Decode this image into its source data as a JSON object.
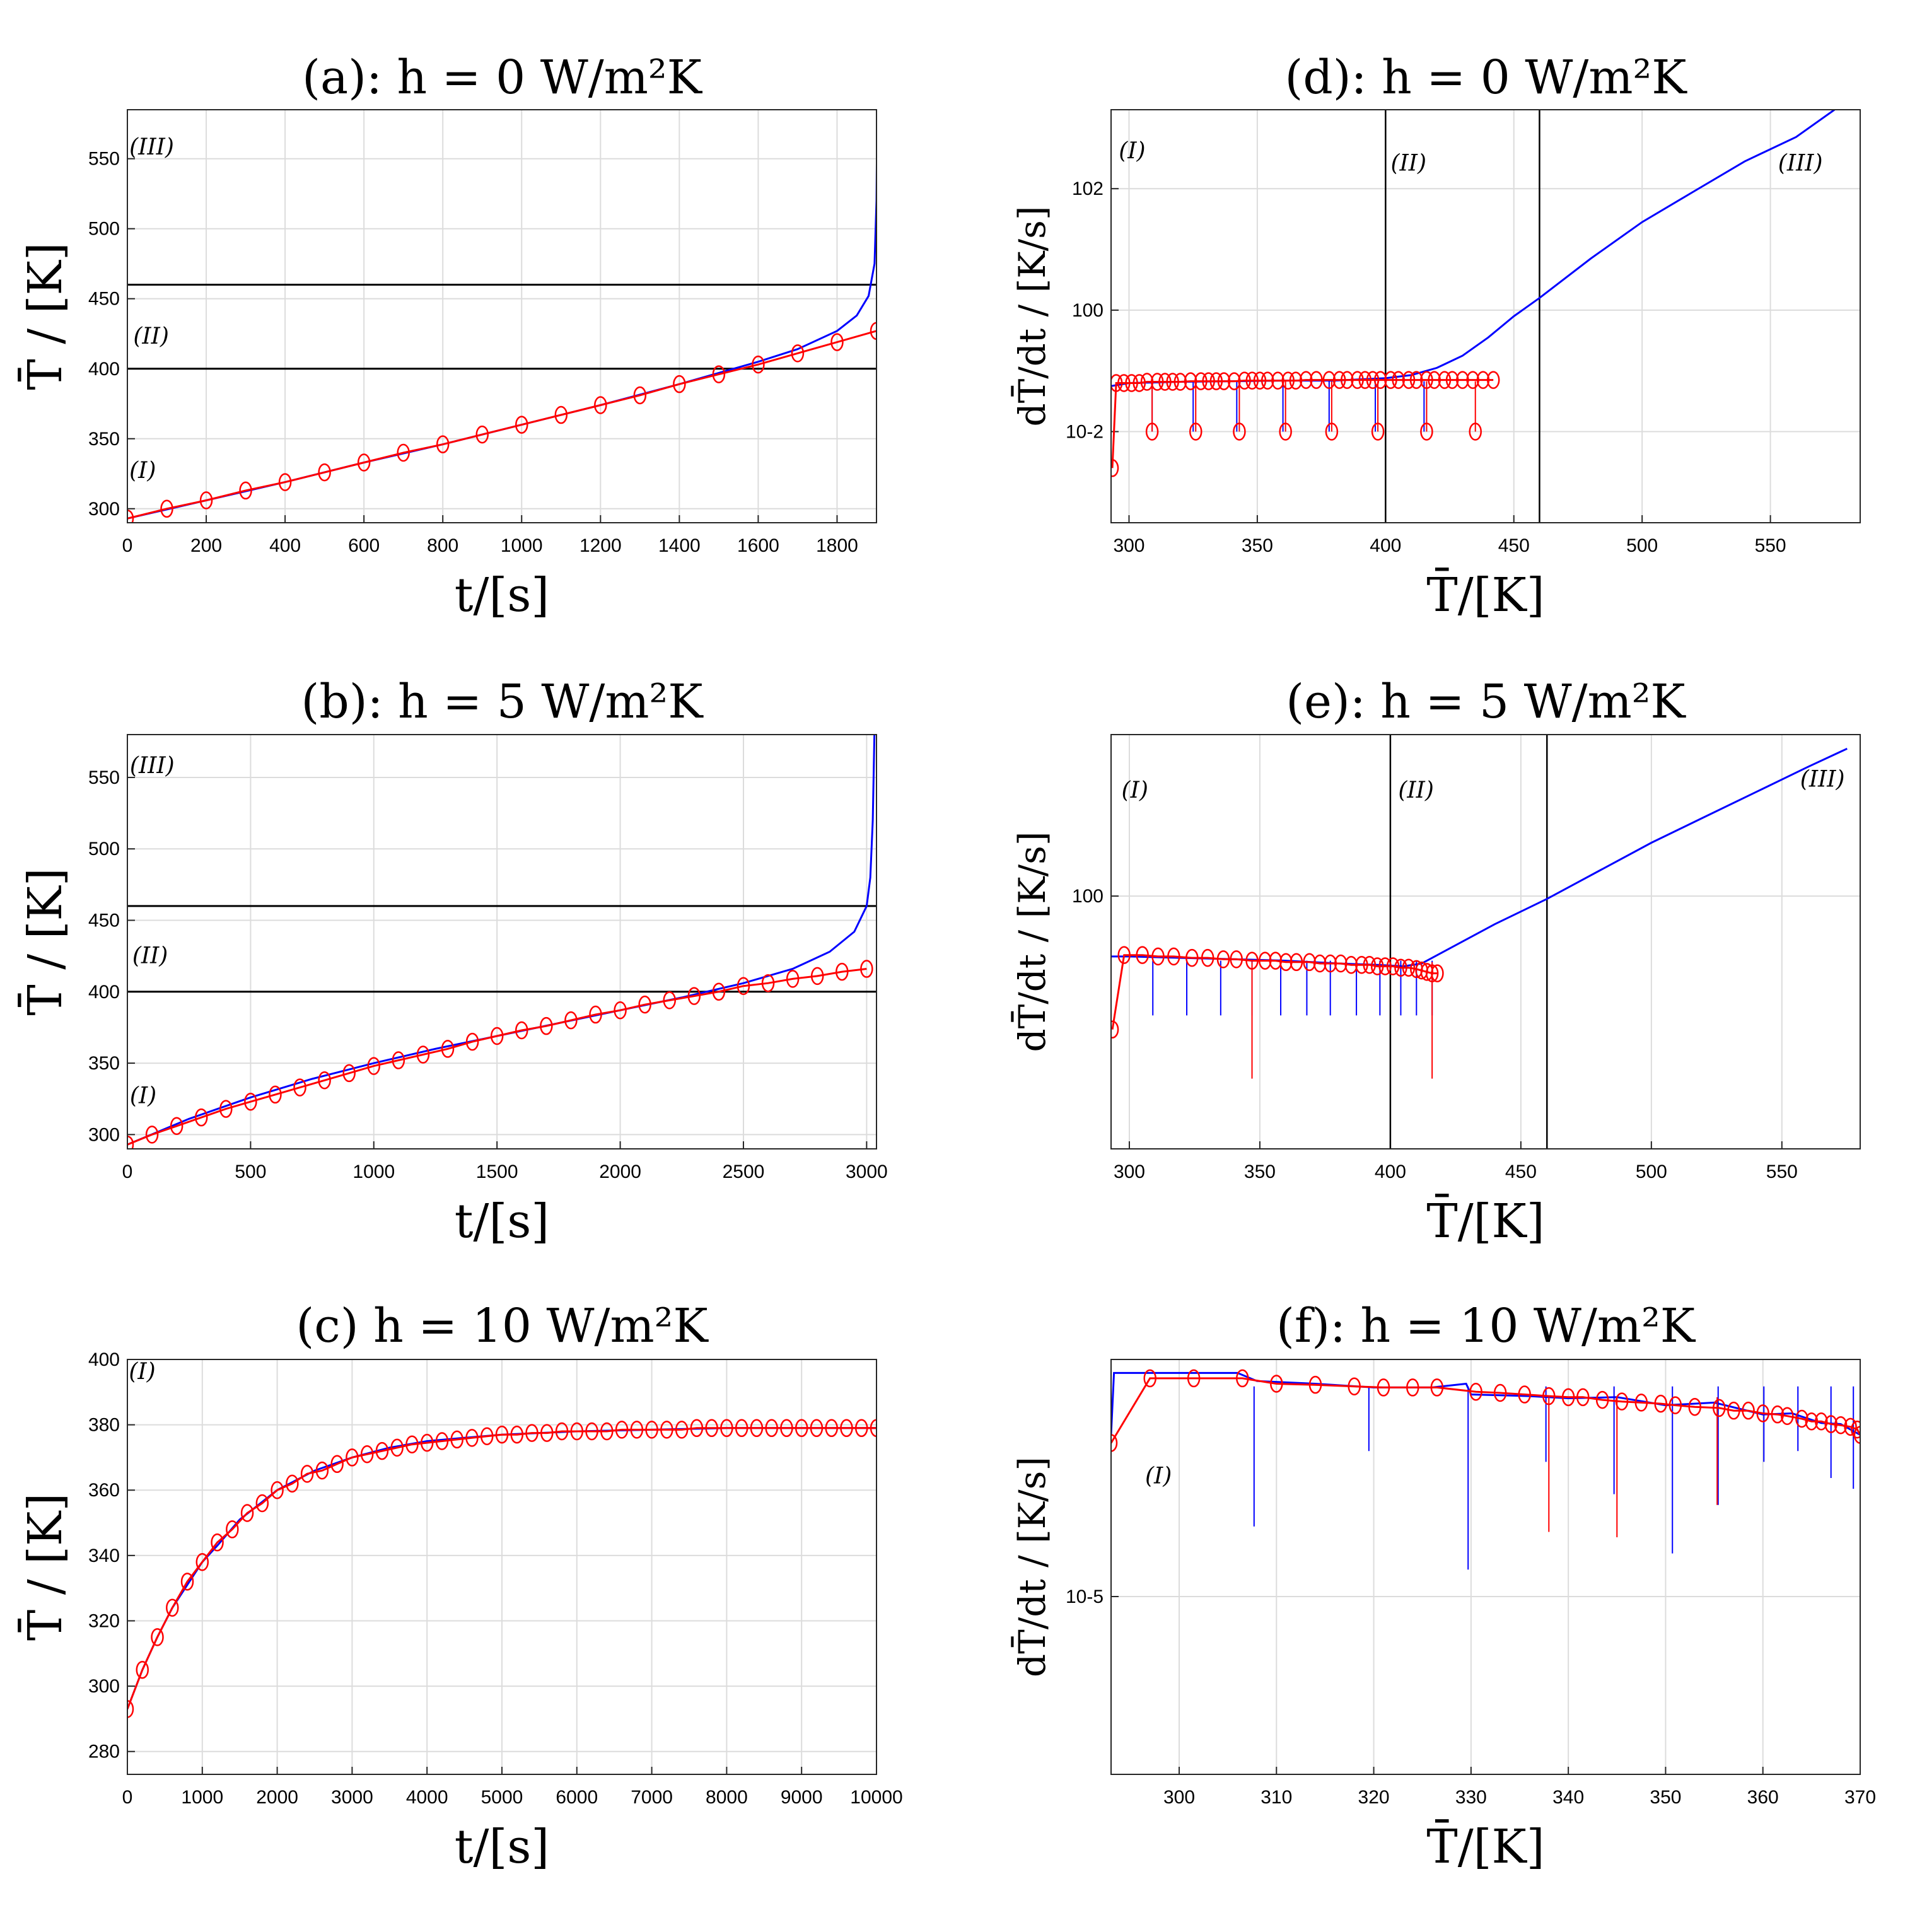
{
  "colors": {
    "model": "#0000ff",
    "reference": "#ff0000",
    "threshold": "#000000",
    "grid": "#dcdcdc"
  },
  "chart_data": [
    {
      "id": "a",
      "type": "line",
      "title": "(a): h = 0 W/m²K",
      "xlabel": "t/[s]",
      "ylabel": "T̄ / [K]",
      "xlim": [
        0,
        1900
      ],
      "ylim": [
        290,
        585
      ],
      "xticks": [
        0,
        200,
        400,
        600,
        800,
        1000,
        1200,
        1400,
        1600,
        1800
      ],
      "yticks": [
        300,
        350,
        400,
        450,
        500,
        550
      ],
      "hlines": [
        400,
        460
      ],
      "regions": [
        {
          "label": "(I)",
          "x": 5,
          "y": 322
        },
        {
          "label": "(II)",
          "x": 15,
          "y": 418
        },
        {
          "label": "(III)",
          "x": 5,
          "y": 553
        }
      ],
      "series": [
        {
          "role": "model",
          "x": [
            0,
            200,
            400,
            600,
            800,
            1000,
            1200,
            1400,
            1500,
            1600,
            1700,
            1800,
            1850,
            1880,
            1895,
            1900,
            1902
          ],
          "y": [
            293,
            306,
            319,
            333,
            346,
            360,
            374,
            389,
            397,
            405,
            414,
            427,
            438,
            452,
            475,
            520,
            590
          ]
        },
        {
          "role": "reference",
          "x": [
            0,
            100,
            200,
            300,
            400,
            500,
            600,
            700,
            800,
            900,
            1000,
            1100,
            1200,
            1300,
            1400,
            1500,
            1600,
            1700,
            1800,
            1900
          ],
          "y": [
            293,
            300,
            306,
            313,
            319,
            326,
            333,
            340,
            346,
            353,
            360,
            367,
            374,
            381,
            389,
            396,
            403,
            411,
            419,
            427
          ],
          "markers": true
        }
      ]
    },
    {
      "id": "d",
      "type": "line",
      "title": "(d): h = 0 W/m²K",
      "xlabel": "T̄/[K]",
      "ylabel": "dT̄/dt / [K/s]",
      "xlim": [
        293,
        585
      ],
      "ylim_log10": [
        -3.5,
        3.3
      ],
      "yscale": "log",
      "xticks": [
        300,
        350,
        400,
        450,
        500,
        550
      ],
      "yticks_log10": [
        -2,
        0,
        2
      ],
      "ytick_labels": [
        "10-2",
        "100",
        "102"
      ],
      "vlines": [
        400,
        460
      ],
      "regions": [
        {
          "label": "(I)",
          "x": 296,
          "y_log10": 2.5
        },
        {
          "label": "(II)",
          "x": 402,
          "y_log10": 2.3
        },
        {
          "label": "(III)",
          "x": 553,
          "y_log10": 2.3
        }
      ],
      "series": [
        {
          "role": "model",
          "x": [
            293,
            300,
            320,
            340,
            360,
            380,
            400,
            410,
            420,
            430,
            440,
            450,
            460,
            480,
            500,
            520,
            540,
            560,
            575
          ],
          "y_log10": [
            -1.25,
            -1.2,
            -1.18,
            -1.17,
            -1.16,
            -1.16,
            -1.12,
            -1.07,
            -0.95,
            -0.75,
            -0.45,
            -0.1,
            0.2,
            0.85,
            1.45,
            1.95,
            2.45,
            2.85,
            3.3
          ]
        },
        {
          "role": "model-dips",
          "x": [
            309,
            325,
            342,
            360,
            378,
            396,
            415
          ],
          "y_base_log10": -1.17,
          "y_tip_log10": -2.0
        },
        {
          "role": "reference",
          "x": [
            293.5,
            295,
            298,
            301,
            304,
            307,
            311,
            314,
            317,
            320,
            324,
            328,
            331,
            334,
            337,
            341,
            345,
            348,
            351,
            354,
            358,
            362,
            365,
            369,
            373,
            378,
            382,
            385,
            389,
            392,
            395,
            398,
            402,
            405,
            409,
            412,
            416,
            419,
            423,
            426,
            430,
            434,
            438,
            442
          ],
          "y_log10": [
            -2.6,
            -1.2,
            -1.2,
            -1.2,
            -1.2,
            -1.18,
            -1.18,
            -1.18,
            -1.18,
            -1.18,
            -1.17,
            -1.17,
            -1.17,
            -1.17,
            -1.17,
            -1.17,
            -1.16,
            -1.16,
            -1.16,
            -1.16,
            -1.16,
            -1.16,
            -1.16,
            -1.15,
            -1.15,
            -1.15,
            -1.15,
            -1.15,
            -1.15,
            -1.15,
            -1.15,
            -1.15,
            -1.15,
            -1.15,
            -1.15,
            -1.15,
            -1.15,
            -1.15,
            -1.15,
            -1.15,
            -1.15,
            -1.15,
            -1.15,
            -1.15
          ],
          "markers": true
        },
        {
          "role": "reference-dips",
          "x": [
            309,
            326,
            343,
            361,
            379,
            397,
            416,
            435
          ],
          "y_base_log10": -1.17,
          "y_tip_log10": -2.0,
          "markers_at_tip": true
        }
      ]
    },
    {
      "id": "b",
      "type": "line",
      "title": "(b): h = 5 W/m²K",
      "xlabel": "t/[s]",
      "ylabel": "T̄ / [K]",
      "xlim": [
        0,
        3040
      ],
      "ylim": [
        290,
        580
      ],
      "xticks": [
        0,
        500,
        1000,
        1500,
        2000,
        2500,
        3000
      ],
      "yticks": [
        300,
        350,
        400,
        450,
        500,
        550
      ],
      "hlines": [
        400,
        460
      ],
      "regions": [
        {
          "label": "(I)",
          "x": 10,
          "y": 322
        },
        {
          "label": "(II)",
          "x": 20,
          "y": 420
        },
        {
          "label": "(III)",
          "x": 10,
          "y": 553
        }
      ],
      "series": [
        {
          "role": "model",
          "x": [
            0,
            250,
            500,
            750,
            1000,
            1250,
            1500,
            1750,
            2000,
            2250,
            2500,
            2700,
            2850,
            2950,
            3000,
            3015,
            3025,
            3032
          ],
          "y": [
            293,
            311,
            326,
            339,
            350,
            360,
            369,
            378,
            387,
            396,
            406,
            416,
            428,
            442,
            460,
            480,
            520,
            585
          ]
        },
        {
          "role": "reference",
          "x": [
            0,
            100,
            200,
            300,
            400,
            500,
            600,
            700,
            800,
            900,
            1000,
            1100,
            1200,
            1300,
            1400,
            1500,
            1600,
            1700,
            1800,
            1900,
            2000,
            2100,
            2200,
            2300,
            2400,
            2500,
            2600,
            2700,
            2800,
            2900,
            3000
          ],
          "y": [
            293,
            300,
            306,
            312,
            318,
            323,
            328,
            333,
            338,
            343,
            348,
            352,
            356,
            360,
            365,
            369,
            373,
            376,
            380,
            384,
            387,
            391,
            394,
            397,
            400,
            404,
            406,
            409,
            411,
            414,
            416
          ],
          "markers": true
        }
      ]
    },
    {
      "id": "e",
      "type": "line",
      "title": "(e): h = 5 W/m²K",
      "xlabel": "T̄/[K]",
      "ylabel": "dT̄/dt / [K/s]",
      "xlim": [
        293,
        580
      ],
      "ylim_log10": [
        -1.8,
        1.15
      ],
      "yscale": "log",
      "xticks": [
        300,
        350,
        400,
        450,
        500,
        550
      ],
      "yticks_log10": [
        0
      ],
      "ytick_labels": [
        "100"
      ],
      "vlines": [
        400,
        460
      ],
      "regions": [
        {
          "label": "(I)",
          "x": 297,
          "y_log10": 0.7
        },
        {
          "label": "(II)",
          "x": 403,
          "y_log10": 0.7
        },
        {
          "label": "(III)",
          "x": 557,
          "y_log10": 0.78
        }
      ],
      "series": [
        {
          "role": "model",
          "x": [
            293,
            300,
            320,
            340,
            360,
            380,
            395,
            405,
            412,
            420,
            440,
            460,
            480,
            500,
            520,
            540,
            560,
            575
          ],
          "y_log10": [
            -0.43,
            -0.43,
            -0.44,
            -0.45,
            -0.46,
            -0.48,
            -0.49,
            -0.5,
            -0.48,
            -0.4,
            -0.2,
            -0.02,
            0.18,
            0.38,
            0.56,
            0.74,
            0.92,
            1.05
          ]
        },
        {
          "role": "model-dips",
          "x": [
            309,
            322,
            335,
            347,
            358,
            368,
            377,
            387,
            396,
            404,
            410,
            416
          ],
          "y_base_log10": -0.46,
          "y_tip_log10": -0.85
        },
        {
          "role": "reference",
          "x": [
            293.5,
            298,
            305,
            311,
            317,
            324,
            330,
            336,
            341,
            347,
            352,
            356,
            360,
            364,
            369,
            373,
            377,
            381,
            385,
            389,
            392,
            395,
            398,
            401,
            404,
            407,
            410,
            412,
            414,
            416,
            418
          ],
          "y_log10": [
            -0.95,
            -0.42,
            -0.42,
            -0.43,
            -0.43,
            -0.44,
            -0.44,
            -0.45,
            -0.45,
            -0.46,
            -0.46,
            -0.46,
            -0.47,
            -0.47,
            -0.47,
            -0.48,
            -0.48,
            -0.48,
            -0.49,
            -0.49,
            -0.49,
            -0.5,
            -0.5,
            -0.5,
            -0.51,
            -0.51,
            -0.52,
            -0.53,
            -0.54,
            -0.55,
            -0.55
          ],
          "markers": true
        },
        {
          "role": "reference-dips",
          "x": [
            347,
            416
          ],
          "y_base_log10": -0.47,
          "y_tip_log10": -1.3
        }
      ]
    },
    {
      "id": "c",
      "type": "line",
      "title": "(c) h = 10 W/m²K",
      "xlabel": "t/[s]",
      "ylabel": "T̄ / [K]",
      "xlim": [
        0,
        10000
      ],
      "ylim": [
        273,
        400
      ],
      "xticks": [
        0,
        1000,
        2000,
        3000,
        4000,
        5000,
        6000,
        7000,
        8000,
        9000,
        10000
      ],
      "yticks": [
        280,
        300,
        320,
        340,
        360,
        380,
        400
      ],
      "regions": [
        {
          "label": "(I)",
          "x": 20,
          "y": 394
        }
      ],
      "series": [
        {
          "role": "model",
          "x": [
            0,
            200,
            400,
            600,
            800,
            1000,
            1200,
            1500,
            2000,
            2500,
            3000,
            3500,
            4000,
            4500,
            5000,
            6000,
            7000,
            8000,
            9000,
            10000
          ],
          "y": [
            293,
            305,
            315,
            324,
            331,
            338,
            343,
            351,
            360,
            366,
            370,
            373,
            375,
            376,
            377,
            378,
            378.5,
            379,
            379,
            379
          ]
        },
        {
          "role": "reference",
          "x": [
            0,
            200,
            400,
            600,
            800,
            1000,
            1200,
            1400,
            1600,
            1800,
            2000,
            2200,
            2400,
            2600,
            2800,
            3000,
            3200,
            3400,
            3600,
            3800,
            4000,
            4200,
            4400,
            4600,
            4800,
            5000,
            5200,
            5400,
            5600,
            5800,
            6000,
            6200,
            6400,
            6600,
            6800,
            7000,
            7200,
            7400,
            7600,
            7800,
            8000,
            8200,
            8400,
            8600,
            8800,
            9000,
            9200,
            9400,
            9600,
            9800,
            10000
          ],
          "y": [
            293,
            305,
            315,
            324,
            332,
            338,
            344,
            348,
            353,
            356,
            360,
            362,
            365,
            366,
            368,
            370,
            371,
            372,
            373,
            374,
            374.5,
            375,
            375.5,
            376,
            376.5,
            377,
            377,
            377.5,
            377.5,
            378,
            378,
            378,
            378,
            378.5,
            378.5,
            378.5,
            378.5,
            378.5,
            379,
            379,
            379,
            379,
            379,
            379,
            379,
            379,
            379,
            379,
            379,
            379,
            379
          ],
          "markers": true
        }
      ]
    },
    {
      "id": "f",
      "type": "line",
      "title": "(f): h = 10 W/m²K",
      "xlabel": "T̄/[K]",
      "ylabel": "dT̄/dt / [K/s]",
      "xlim": [
        293,
        370
      ],
      "ylim_log10": [
        -8.3,
        -0.6
      ],
      "yscale": "log",
      "xticks": [
        300,
        310,
        320,
        330,
        340,
        350,
        360,
        370
      ],
      "yticks_log10": [
        -5
      ],
      "ytick_labels": [
        "10-5"
      ],
      "regions": [
        {
          "label": "(I)",
          "x": 296.5,
          "y_log10": -2.9
        }
      ],
      "series": [
        {
          "role": "model",
          "x": [
            293,
            293.3,
            300,
            306,
            308,
            314,
            320,
            326,
            329.5,
            330,
            336,
            340,
            345,
            350,
            355,
            360,
            363,
            366,
            368,
            370
          ],
          "y_log10": [
            -2.0,
            -0.85,
            -0.85,
            -0.85,
            -1.0,
            -1.05,
            -1.12,
            -1.12,
            -1.05,
            -1.25,
            -1.28,
            -1.32,
            -1.3,
            -1.45,
            -1.4,
            -1.62,
            -1.6,
            -1.78,
            -1.8,
            -2.0
          ]
        },
        {
          "role": "model-dips",
          "x": [
            307.7,
            319.5,
            329.7,
            337.7,
            344.7,
            350.7,
            355.4,
            360.1,
            363.6,
            367,
            369.3
          ],
          "y_base_log10": -1.1,
          "y_tip_log10": [
            -3.7,
            -2.3,
            -4.5,
            -2.5,
            -3.1,
            -4.2,
            -3.3,
            -2.5,
            -2.3,
            -2.8,
            -3.0
          ]
        },
        {
          "role": "reference",
          "x": [
            293,
            297,
            301.5,
            306.5,
            310,
            314,
            318,
            321,
            324,
            326.5,
            330.5,
            333,
            335.5,
            338,
            340,
            341.5,
            343.5,
            345.5,
            347.5,
            349.5,
            351,
            353,
            355.5,
            357,
            358.5,
            360,
            361.5,
            362.5,
            364,
            365,
            366,
            367,
            368,
            369,
            369.7,
            370
          ],
          "y_log10": [
            -2.15,
            -0.95,
            -0.95,
            -0.95,
            -1.05,
            -1.07,
            -1.1,
            -1.12,
            -1.12,
            -1.12,
            -1.2,
            -1.22,
            -1.25,
            -1.28,
            -1.3,
            -1.3,
            -1.35,
            -1.38,
            -1.4,
            -1.42,
            -1.45,
            -1.48,
            -1.5,
            -1.55,
            -1.55,
            -1.6,
            -1.62,
            -1.65,
            -1.7,
            -1.75,
            -1.75,
            -1.8,
            -1.82,
            -1.85,
            -1.9,
            -2.0
          ],
          "markers": true
        },
        {
          "role": "reference-dips",
          "x": [
            338,
            345,
            355.3
          ],
          "y_base_log10": -1.3,
          "y_tip_log10": [
            -3.8,
            -3.9,
            -3.3
          ]
        }
      ]
    }
  ]
}
